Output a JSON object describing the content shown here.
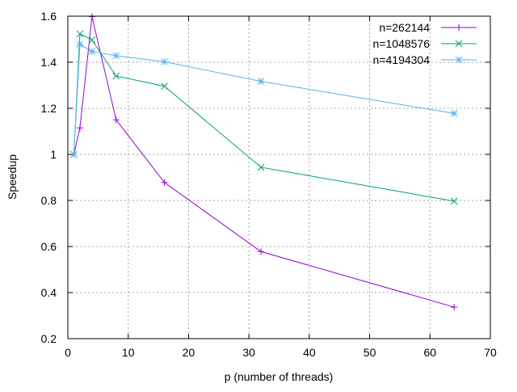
{
  "chart_data": {
    "type": "line",
    "title": "",
    "xlabel": "p (number of threads)",
    "ylabel": "Speedup",
    "xlim": [
      0,
      70
    ],
    "ylim": [
      0.2,
      1.6
    ],
    "xticks": [
      0,
      10,
      20,
      30,
      40,
      50,
      60,
      70
    ],
    "yticks": [
      0.2,
      0.4,
      0.6,
      0.8,
      1.0,
      1.2,
      1.4,
      1.6
    ],
    "xtick_labels": [
      "0",
      "10",
      "20",
      "30",
      "40",
      "50",
      "60",
      "70"
    ],
    "ytick_labels": [
      "0.2",
      "0.4",
      "0.6",
      "0.8",
      "1",
      "1.2",
      "1.4",
      "1.6"
    ],
    "grid": true,
    "legend_position": "top-right",
    "x": [
      1,
      2,
      4,
      8,
      16,
      32,
      64
    ],
    "series": [
      {
        "name": "n=262144",
        "color": "#9400d3",
        "marker": "plus",
        "values": [
          1.0,
          1.115,
          1.598,
          1.15,
          0.878,
          0.578,
          0.337
        ]
      },
      {
        "name": "n=1048576",
        "color": "#009e73",
        "marker": "cross",
        "values": [
          1.0,
          1.523,
          1.497,
          1.34,
          1.296,
          0.944,
          0.797
        ]
      },
      {
        "name": "n=4194304",
        "color": "#56b4e9",
        "marker": "star",
        "values": [
          1.0,
          1.478,
          1.447,
          1.428,
          1.402,
          1.317,
          1.178
        ]
      }
    ]
  }
}
